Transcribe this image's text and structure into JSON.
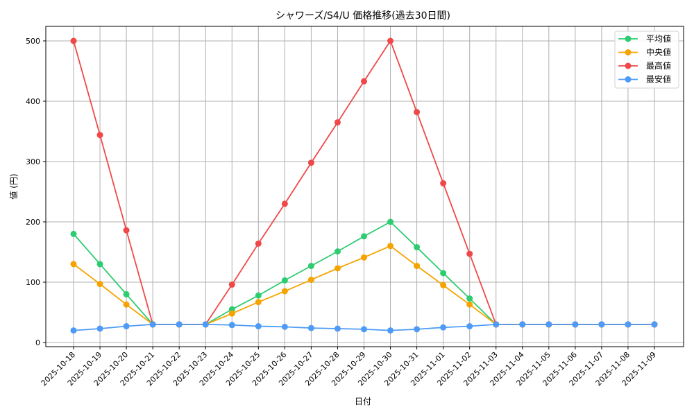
{
  "chart_data": {
    "type": "line",
    "title": "シャワーズ/S4/U 価格推移(過去30日間)",
    "xlabel": "日付",
    "ylabel": "値 (円)",
    "ylim": [
      -5,
      525
    ],
    "yticks": [
      0,
      100,
      200,
      300,
      400,
      500
    ],
    "grid": true,
    "legend_position": "upper right",
    "categories": [
      "2025-10-18",
      "2025-10-19",
      "2025-10-20",
      "2025-10-21",
      "2025-10-22",
      "2025-10-23",
      "2025-10-24",
      "2025-10-25",
      "2025-10-26",
      "2025-10-27",
      "2025-10-28",
      "2025-10-29",
      "2025-10-30",
      "2025-10-31",
      "2025-11-01",
      "2025-11-02",
      "2025-11-03",
      "2025-11-04",
      "2025-11-05",
      "2025-11-06",
      "2025-11-07",
      "2025-11-08",
      "2025-11-09"
    ],
    "series": [
      {
        "name": "平均値",
        "color": "#2ecc71",
        "values": [
          180,
          130,
          80,
          30,
          30,
          30,
          55,
          78,
          103,
          127,
          151,
          176,
          200,
          158,
          115,
          73,
          30,
          30,
          30,
          30,
          30,
          30,
          30
        ]
      },
      {
        "name": "中央値",
        "color": "#f5a300",
        "values": [
          130,
          97,
          63,
          30,
          30,
          30,
          48,
          67,
          85,
          104,
          123,
          141,
          160,
          127,
          95,
          63,
          30,
          30,
          30,
          30,
          30,
          30,
          30
        ]
      },
      {
        "name": "最高値",
        "color": "#f04848",
        "values": [
          500,
          344,
          186,
          30,
          30,
          30,
          96,
          164,
          230,
          298,
          365,
          433,
          500,
          382,
          264,
          147,
          30,
          30,
          30,
          30,
          30,
          30,
          30
        ]
      },
      {
        "name": "最安値",
        "color": "#4d9bf7",
        "values": [
          20,
          23,
          27,
          30,
          30,
          30,
          29,
          27,
          26,
          24,
          23,
          22,
          20,
          22,
          25,
          27,
          30,
          30,
          30,
          30,
          30,
          30,
          30
        ]
      }
    ]
  }
}
